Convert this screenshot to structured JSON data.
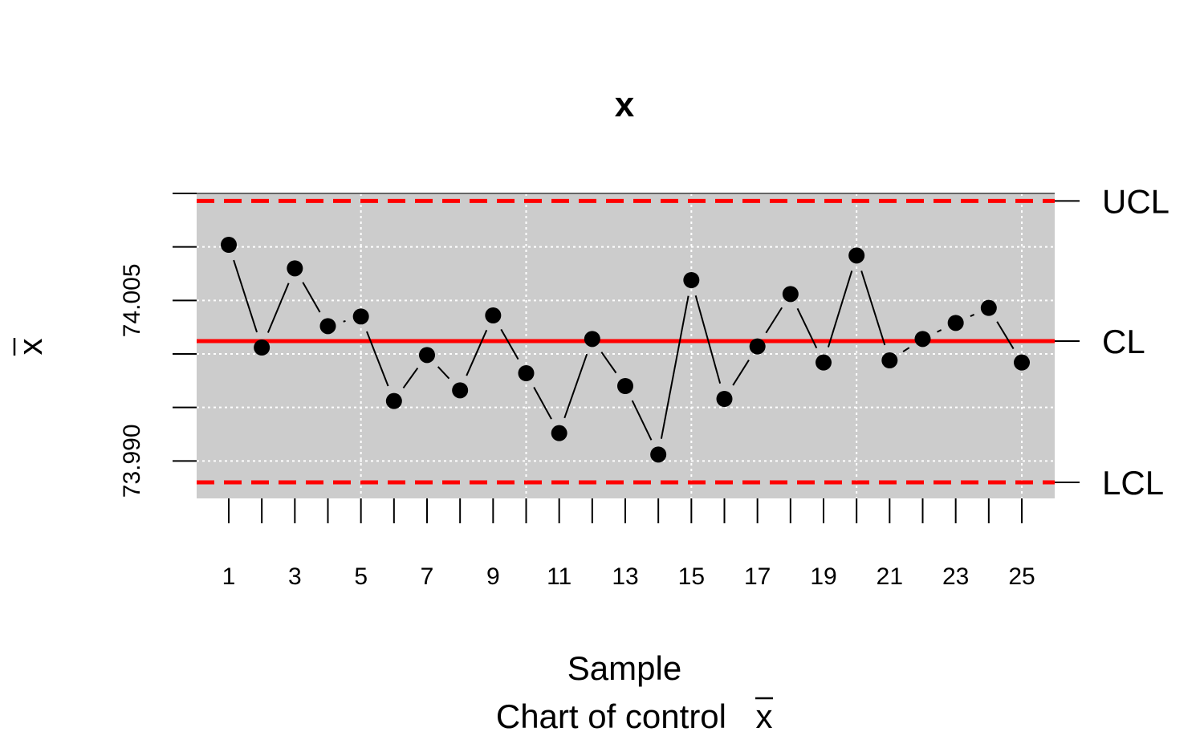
{
  "chart_data": {
    "type": "line",
    "title": "x",
    "xlabel": "Sample",
    "subtitle": "Chart of control",
    "ylabel": "x",
    "x": [
      1,
      2,
      3,
      4,
      5,
      6,
      7,
      8,
      9,
      10,
      11,
      12,
      13,
      14,
      15,
      16,
      17,
      18,
      19,
      20,
      21,
      22,
      23,
      24,
      25
    ],
    "series": [
      {
        "values": [
          74.0102,
          74.0006,
          74.008,
          74.0026,
          74.0035,
          73.9956,
          73.9999,
          73.9966,
          74.0036,
          73.9982,
          73.9926,
          74.0014,
          73.997,
          73.9906,
          74.0069,
          73.9958,
          74.0007,
          74.0056,
          73.9992,
          74.0092,
          73.9994,
          74.0014,
          74.0029,
          74.0043,
          73.9992
        ]
      }
    ],
    "limits": {
      "ucl": 74.0143,
      "cl": 74.0012,
      "lcl": 73.988,
      "ucl_label": "UCL",
      "cl_label": "CL",
      "lcl_label": "LCL"
    },
    "xticks": [
      "1",
      "3",
      "5",
      "7",
      "9",
      "11",
      "13",
      "15",
      "17",
      "19",
      "21",
      "23",
      "25"
    ],
    "yticks": [
      {
        "value": 73.99,
        "label": "73.990"
      },
      {
        "value": 74.005,
        "label": "74.005"
      }
    ],
    "ylim": [
      73.9865,
      74.015
    ],
    "grid": true,
    "colors": {
      "panel": "#cccccc",
      "limit_line": "#ff0000",
      "grid": "#ffffff",
      "points": "#000000"
    }
  }
}
